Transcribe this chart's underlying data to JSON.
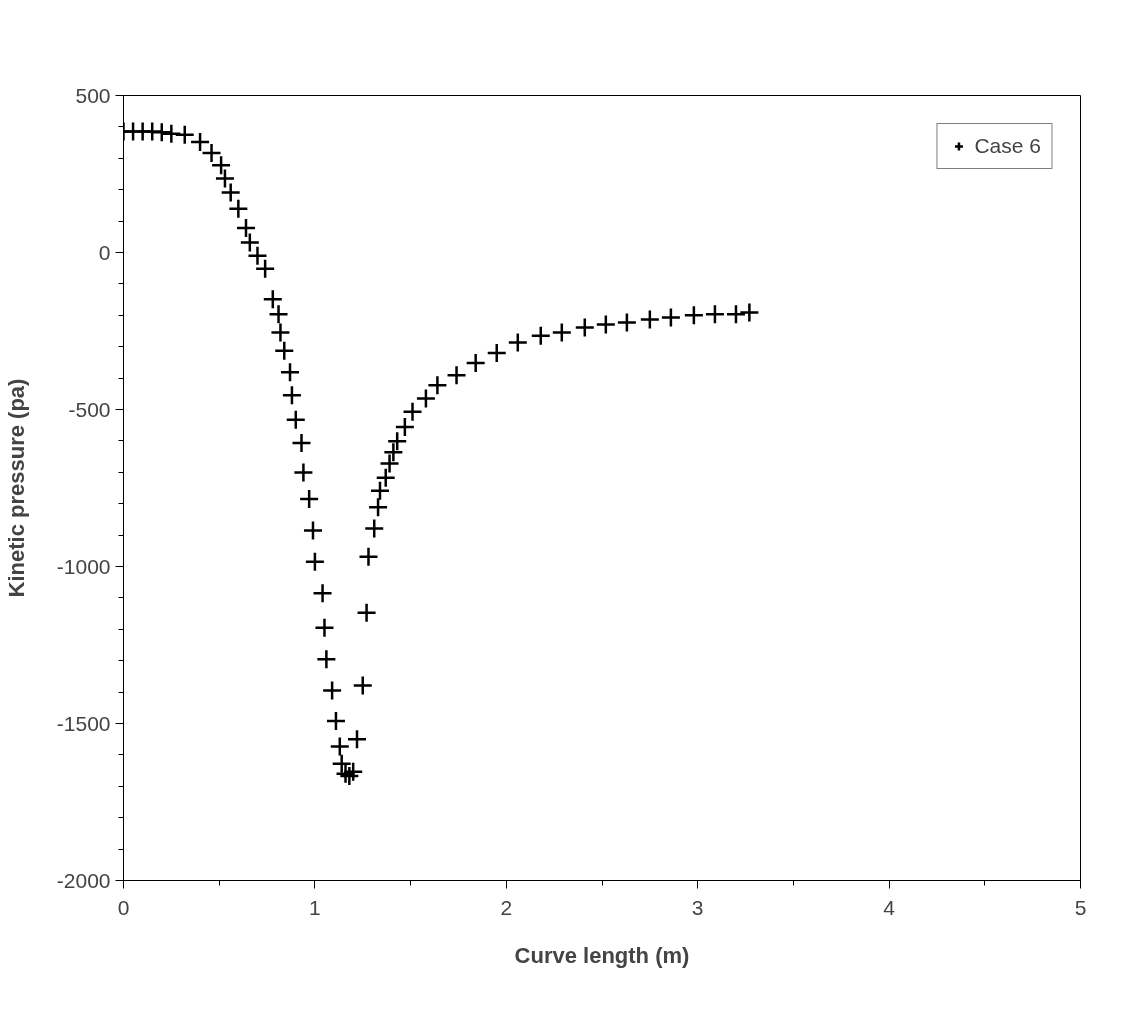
{
  "chart_data": {
    "type": "scatter",
    "xlabel": "Curve length (m)",
    "ylabel": "Kinetic pressure (pa)",
    "xlim": [
      0,
      5
    ],
    "ylim": [
      -2000,
      500
    ],
    "xticks": [
      0,
      1,
      2,
      3,
      4,
      5
    ],
    "yticks": [
      -2000,
      -1500,
      -1000,
      -500,
      0,
      500
    ],
    "grid": false,
    "legend": "top right",
    "marker": "cross",
    "series": [
      {
        "name": "Case 6",
        "color": "#000000",
        "x": [
          0,
          0.05,
          0.1,
          0.15,
          0.2,
          0.25,
          0.32,
          0.4,
          0.46,
          0.51,
          0.53,
          0.56,
          0.6,
          0.64,
          0.66,
          0.7,
          0.74,
          0.78,
          0.81,
          0.82,
          0.84,
          0.87,
          0.88,
          0.9,
          0.93,
          0.94,
          0.97,
          0.99,
          1.0,
          1.04,
          1.05,
          1.06,
          1.09,
          1.11,
          1.13,
          1.14,
          1.16,
          1.18,
          1.2,
          1.22,
          1.25,
          1.27,
          1.28,
          1.31,
          1.33,
          1.34,
          1.37,
          1.39,
          1.41,
          1.43,
          1.47,
          1.51,
          1.58,
          1.64,
          1.74,
          1.84,
          1.95,
          2.06,
          2.18,
          2.29,
          2.41,
          2.52,
          2.63,
          2.75,
          2.86,
          2.98,
          3.09,
          3.2,
          3.27
        ],
        "values": [
          385,
          385,
          385,
          385,
          383,
          378,
          375,
          352,
          317,
          278,
          236,
          191,
          139,
          78,
          32,
          -10,
          -52,
          -149,
          -197,
          -255,
          -313,
          -381,
          -455,
          -533,
          -607,
          -701,
          -785,
          -885,
          -985,
          -1085,
          -1195,
          -1295,
          -1395,
          -1492,
          -1573,
          -1628,
          -1660,
          -1667,
          -1654,
          -1550,
          -1379,
          -1147,
          -969,
          -879,
          -811,
          -759,
          -717,
          -672,
          -636,
          -601,
          -556,
          -507,
          -465,
          -423,
          -391,
          -352,
          -320,
          -287,
          -265,
          -255,
          -239,
          -229,
          -223,
          -213,
          -207,
          -200,
          -197,
          -197,
          -191
        ]
      }
    ]
  }
}
